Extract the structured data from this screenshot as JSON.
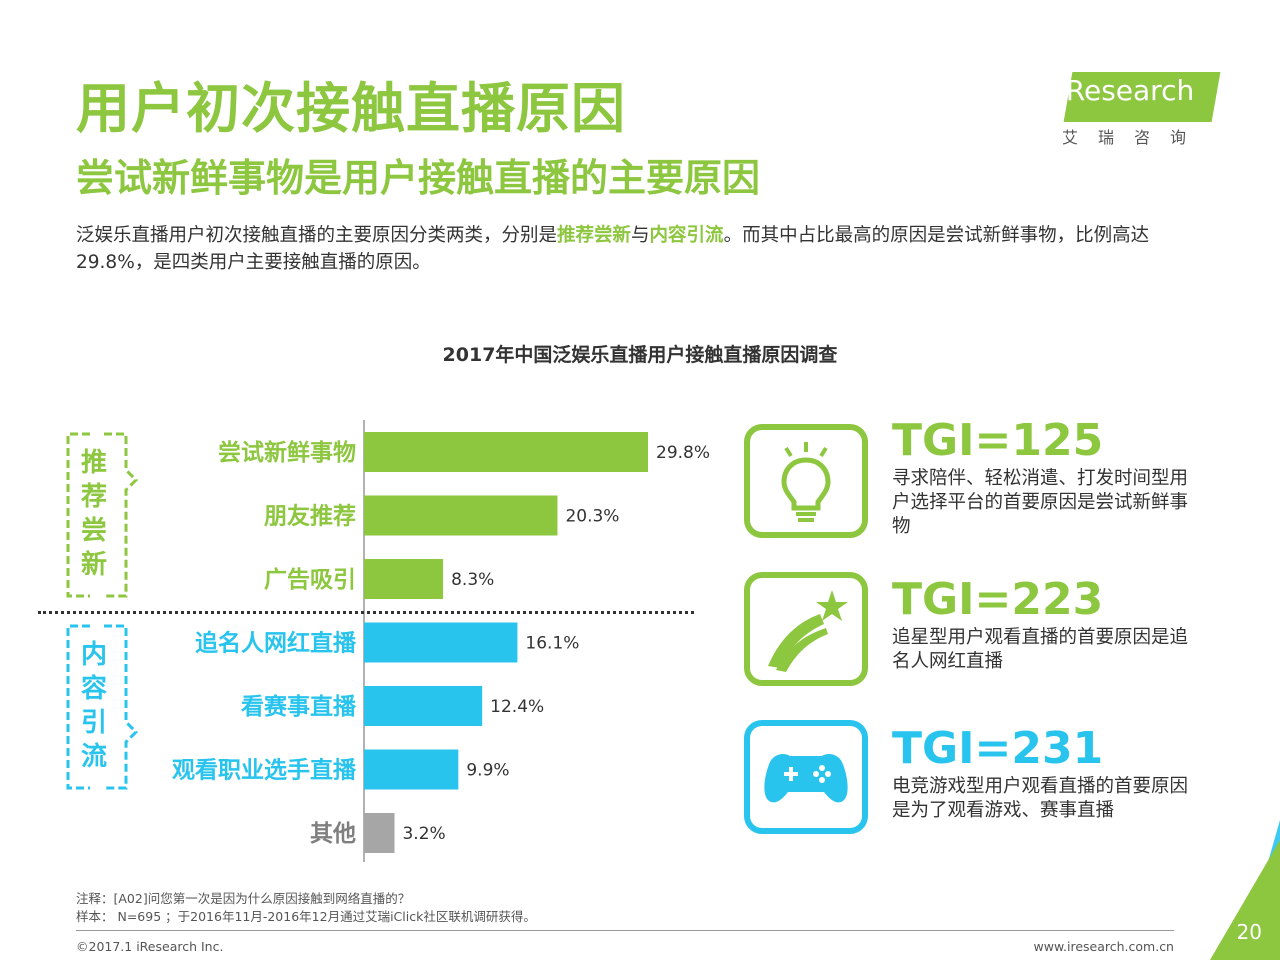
{
  "title": "用户初次接触直播原因",
  "subtitle": "尝试新鲜事物是用户接触直播的主要原因",
  "description": {
    "part1": "泛娱乐直播用户初次接触直播的主要原因分类两类，分别是",
    "hl1": "推荐尝新",
    "part2": "与",
    "hl2": "内容引流",
    "part3": "。而其中占比最高的原因是尝试新鲜事物，比例高达29.8%，是四类用户主要接触直播的原因。"
  },
  "logo": {
    "brand": "iResearch",
    "cn": "艾瑞咨询"
  },
  "groups": {
    "group1": "推荐尝新",
    "group2": "内容引流"
  },
  "chart_data": {
    "type": "bar",
    "orientation": "horizontal",
    "title": "2017年中国泛娱乐直播用户接触直播原因调查",
    "categories": [
      "尝试新鲜事物",
      "朋友推荐",
      "广告吸引",
      "追名人网红直播",
      "看赛事直播",
      "观看职业选手直播",
      "其他"
    ],
    "values": [
      29.8,
      20.3,
      8.3,
      16.1,
      12.4,
      9.9,
      3.2
    ],
    "value_labels": [
      "29.8%",
      "20.3%",
      "8.3%",
      "16.1%",
      "12.4%",
      "9.9%",
      "3.2%"
    ],
    "colors": [
      "#8dc63f",
      "#8dc63f",
      "#8dc63f",
      "#29c4ee",
      "#29c4ee",
      "#29c4ee",
      "#a6a6a6"
    ],
    "grid": false,
    "legend": "none"
  },
  "tgi": [
    {
      "label": "TGI=125",
      "text": "寻求陪伴、轻松消遣、打发时间型用户选择平台的首要原因是尝试新鲜事物",
      "icon": "lightbulb-icon"
    },
    {
      "label": "TGI=223",
      "text": "追星型用户观看直播的首要原因是追名人网红直播",
      "icon": "shooting-star-icon"
    },
    {
      "label": "TGI=231",
      "text": "电竞游戏型用户观看直播的首要原因是为了观看游戏、赛事直播",
      "icon": "gamepad-icon"
    }
  ],
  "notes": {
    "note1": "注释：[A02]问您第一次是因为什么原因接触到网络直播的？",
    "note2": "样本： N=695 ；于2016年11月-2016年12月通过艾瑞iClick社区联机调研获得。"
  },
  "footer": {
    "copyright": "©2017.1 iResearch Inc.",
    "url": "www.iresearch.com.cn",
    "page": "20"
  }
}
